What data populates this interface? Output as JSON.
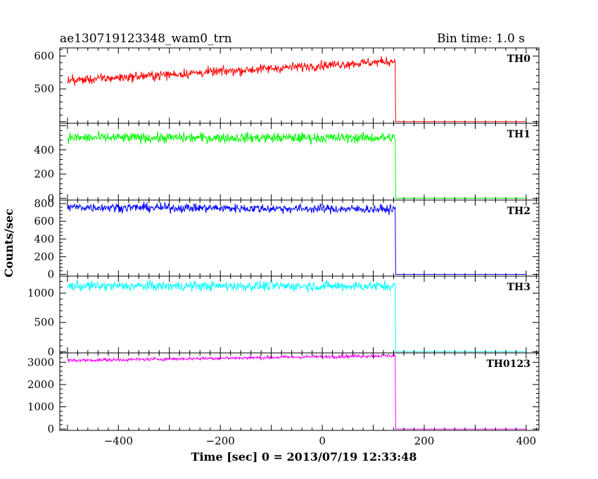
{
  "chart_data": {
    "type": "line",
    "title": "ae130719123348_wam0_trn",
    "subtitle": "Bin time: 1.0 s",
    "xlabel": "Time [sec] 0 = 2013/07/19 12:33:48",
    "ylabel": "Counts/sec",
    "xlim": [
      -515,
      425
    ],
    "x_ticks": [
      -400,
      -200,
      0,
      200,
      400
    ],
    "x_tick_labels": [
      "−400",
      "−200",
      "0",
      "200",
      "400"
    ],
    "x_data_range": [
      -500,
      400
    ],
    "cutoff_time": 143,
    "grid": false,
    "panels": [
      {
        "label": "TH0",
        "color": "#ff0000",
        "ylim": [
          395,
          625
        ],
        "yticks": [
          400,
          500,
          600
        ],
        "ytick_labels": [
          "",
          "500",
          "600"
        ],
        "level_start": 525,
        "level_end": 585,
        "noise_amplitude": 13,
        "after_value": 400
      },
      {
        "label": "TH1",
        "color": "#00ff00",
        "ylim": [
          -15,
          620
        ],
        "yticks": [
          0,
          200,
          400,
          600
        ],
        "ytick_labels": [
          "0",
          "200",
          "400",
          ""
        ],
        "level_start": 500,
        "level_end": 500,
        "noise_amplitude": 38,
        "after_value": 0
      },
      {
        "label": "TH2",
        "color": "#0000ff",
        "ylim": [
          -20,
          840
        ],
        "yticks": [
          0,
          200,
          400,
          600,
          800
        ],
        "ytick_labels": [
          "0",
          "200",
          "400",
          "600",
          "800"
        ],
        "level_start": 760,
        "level_end": 735,
        "noise_amplitude": 45,
        "after_value": 0
      },
      {
        "label": "TH3",
        "color": "#00ffff",
        "ylim": [
          -20,
          1290
        ],
        "yticks": [
          0,
          500,
          1000
        ],
        "ytick_labels": [
          "0",
          "500",
          "1000"
        ],
        "level_start": 1120,
        "level_end": 1120,
        "noise_amplitude": 75,
        "after_value": 0
      },
      {
        "label": "TH0123",
        "color": "#ff00ff",
        "ylim": [
          -60,
          3420
        ],
        "yticks": [
          0,
          1000,
          2000,
          3000
        ],
        "ytick_labels": [
          "0",
          "1000",
          "2000",
          "3000"
        ],
        "level_start": 3080,
        "level_end": 3300,
        "noise_amplitude": 70,
        "after_value": 0
      }
    ]
  }
}
